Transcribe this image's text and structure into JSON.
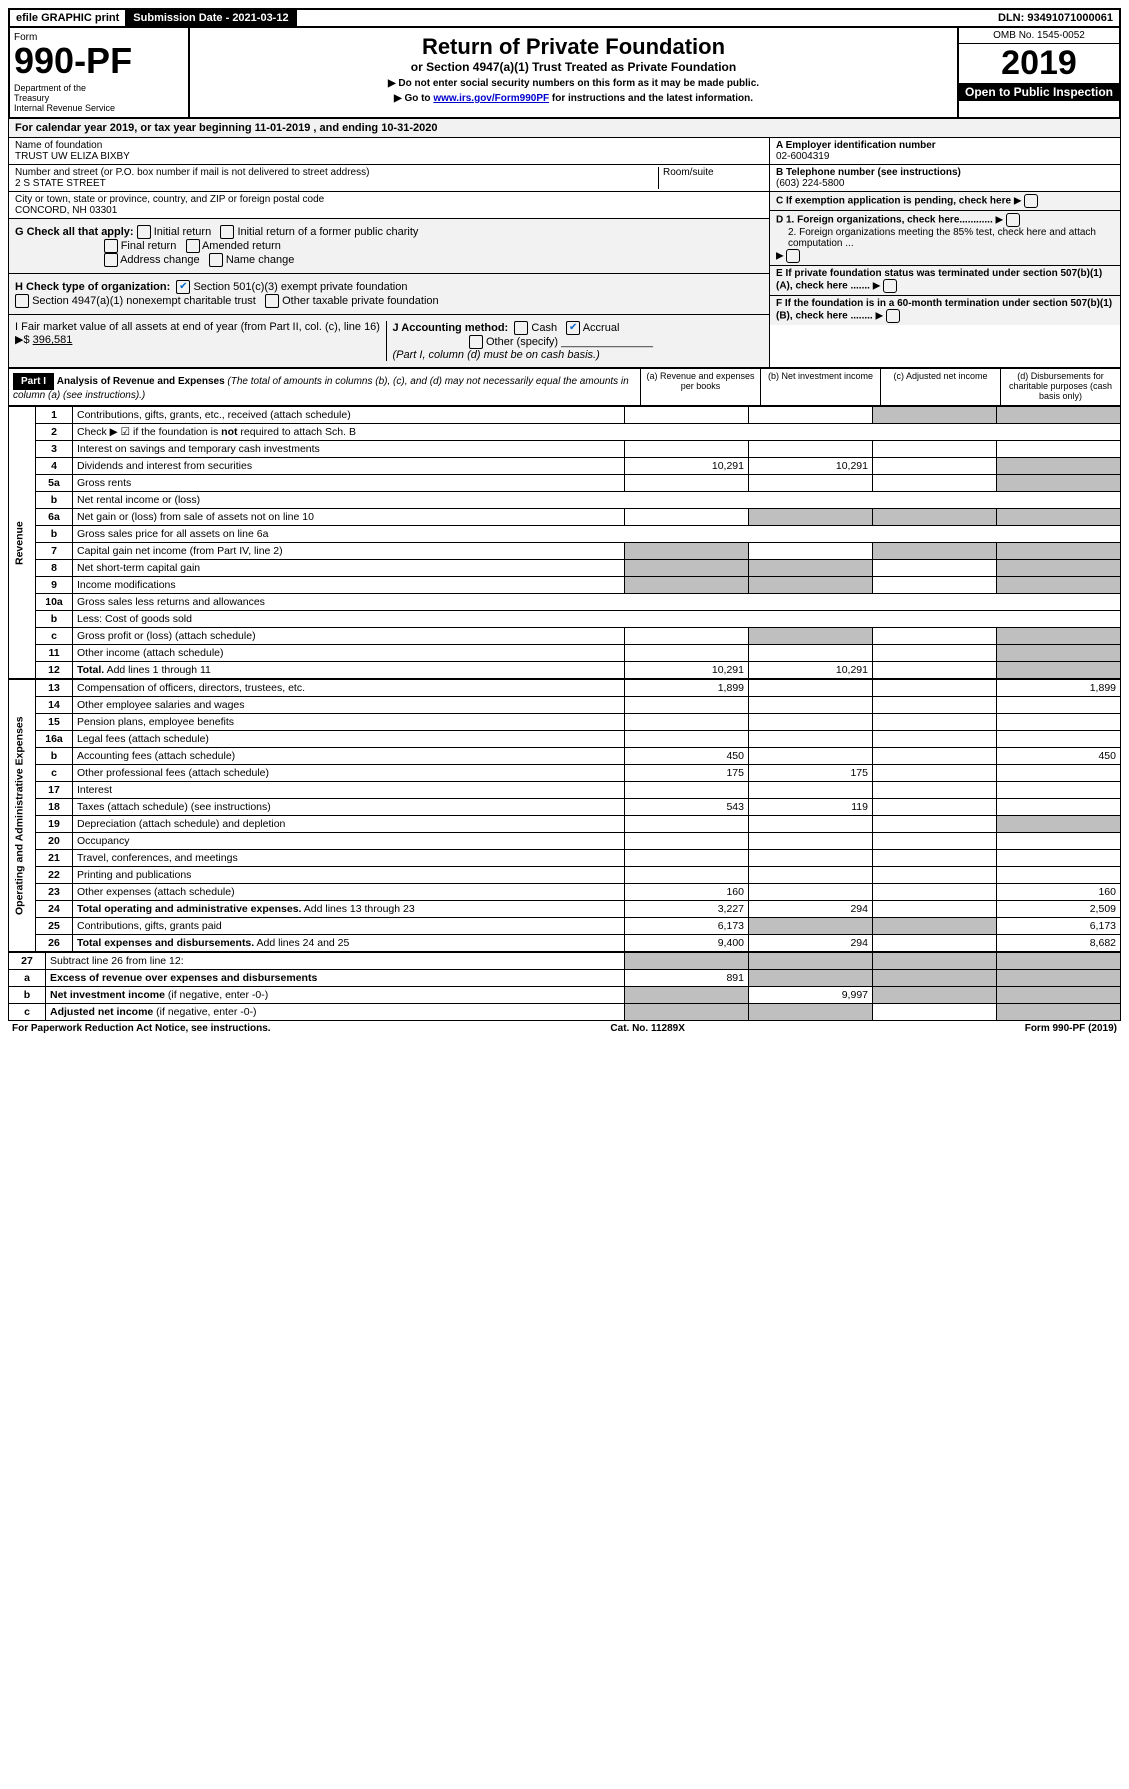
{
  "top": {
    "efile": "efile GRAPHIC print",
    "submission": "Submission Date - 2021-03-12",
    "dln": "DLN: 93491071000061"
  },
  "header": {
    "form_label": "Form",
    "form_number": "990-PF",
    "dept": "Department of the Treasury\nInternal Revenue Service",
    "title": "Return of Private Foundation",
    "subtitle": "or Section 4947(a)(1) Trust Treated as Private Foundation",
    "note1": "▶ Do not enter social security numbers on this form as it may be made public.",
    "note2_pre": "▶ Go to ",
    "note2_link": "www.irs.gov/Form990PF",
    "note2_post": " for instructions and the latest information.",
    "omb": "OMB No. 1545-0052",
    "year": "2019",
    "open_public": "Open to Public Inspection"
  },
  "cal_year": "For calendar year 2019, or tax year beginning 11-01-2019                           , and ending 10-31-2020",
  "info": {
    "name_label": "Name of foundation",
    "name_value": "TRUST UW ELIZA BIXBY",
    "address_label": "Number and street (or P.O. box number if mail is not delivered to street address)",
    "address_value": "2 S STATE STREET",
    "room_label": "Room/suite",
    "city_label": "City or town, state or province, country, and ZIP or foreign postal code",
    "city_value": "CONCORD, NH  03301",
    "ein_label": "A Employer identification number",
    "ein_value": "02-6004319",
    "phone_label": "B Telephone number (see instructions)",
    "phone_value": "(603) 224-5800",
    "c_label": "C If exemption application is pending, check here",
    "g_label": "G Check all that apply:",
    "g_opts": [
      "Initial return",
      "Initial return of a former public charity",
      "Final return",
      "Amended return",
      "Address change",
      "Name change"
    ],
    "d1": "D 1. Foreign organizations, check here............",
    "d2": "2. Foreign organizations meeting the 85% test, check here and attach computation ...",
    "h_label": "H Check type of organization:",
    "h_opt1": "Section 501(c)(3) exempt private foundation",
    "h_opt2": "Section 4947(a)(1) nonexempt charitable trust",
    "h_opt3": "Other taxable private foundation",
    "e_label": "E If private foundation status was terminated under section 507(b)(1)(A), check here .......",
    "i_label": "I Fair market value of all assets at end of year (from Part II, col. (c), line 16) ▶$",
    "i_value": "396,581",
    "j_label": "J Accounting method:",
    "j_cash": "Cash",
    "j_accrual": "Accrual",
    "j_other": "Other (specify)",
    "j_note": "(Part I, column (d) must be on cash basis.)",
    "f_label": "F If the foundation is in a 60-month termination under section 507(b)(1)(B), check here ........"
  },
  "part1": {
    "label": "Part I",
    "title": "Analysis of Revenue and Expenses",
    "note": "(The total of amounts in columns (b), (c), and (d) may not necessarily equal the amounts in column (a) (see instructions).)",
    "col_a": "(a) Revenue and expenses per books",
    "col_b": "(b) Net investment income",
    "col_c": "(c) Adjusted net income",
    "col_d": "(d) Disbursements for charitable purposes (cash basis only)"
  },
  "revenue_label": "Revenue",
  "expenses_label": "Operating and Administrative Expenses",
  "lines": [
    {
      "no": "1",
      "desc": "Contributions, gifts, grants, etc., received (attach schedule)",
      "a": "",
      "b": "",
      "c": "",
      "d": "",
      "d_gray": true,
      "c_gray": true
    },
    {
      "no": "2",
      "desc": "Check ▶ ☑ if the foundation is <b>not</b> required to attach Sch. B",
      "wide": true
    },
    {
      "no": "3",
      "desc": "Interest on savings and temporary cash investments",
      "a": "",
      "b": "",
      "c": "",
      "d": ""
    },
    {
      "no": "4",
      "desc": "Dividends and interest from securities",
      "a": "10,291",
      "b": "10,291",
      "c": "",
      "d": "",
      "d_gray": true
    },
    {
      "no": "5a",
      "desc": "Gross rents",
      "a": "",
      "b": "",
      "c": "",
      "d": "",
      "d_gray": true
    },
    {
      "no": "b",
      "desc": "Net rental income or (loss)",
      "wide": true
    },
    {
      "no": "6a",
      "desc": "Net gain or (loss) from sale of assets not on line 10",
      "a": "",
      "b": "",
      "c": "",
      "d": "",
      "b_gray": true,
      "c_gray": true,
      "d_gray": true
    },
    {
      "no": "b",
      "desc": "Gross sales price for all assets on line 6a",
      "wide": true
    },
    {
      "no": "7",
      "desc": "Capital gain net income (from Part IV, line 2)",
      "a": "",
      "b": "",
      "c": "",
      "d": "",
      "a_gray": true,
      "c_gray": true,
      "d_gray": true
    },
    {
      "no": "8",
      "desc": "Net short-term capital gain",
      "a": "",
      "b": "",
      "c": "",
      "d": "",
      "a_gray": true,
      "b_gray": true,
      "d_gray": true
    },
    {
      "no": "9",
      "desc": "Income modifications",
      "a": "",
      "b": "",
      "c": "",
      "d": "",
      "a_gray": true,
      "b_gray": true,
      "d_gray": true
    },
    {
      "no": "10a",
      "desc": "Gross sales less returns and allowances",
      "wide": true
    },
    {
      "no": "b",
      "desc": "Less: Cost of goods sold",
      "wide": true
    },
    {
      "no": "c",
      "desc": "Gross profit or (loss) (attach schedule)",
      "a": "",
      "b": "",
      "c": "",
      "d": "",
      "b_gray": true,
      "d_gray": true
    },
    {
      "no": "11",
      "desc": "Other income (attach schedule)",
      "a": "",
      "b": "",
      "c": "",
      "d": "",
      "d_gray": true
    },
    {
      "no": "12",
      "desc": "<b>Total.</b> Add lines 1 through 11",
      "a": "10,291",
      "b": "10,291",
      "c": "",
      "d": "",
      "d_gray": true
    }
  ],
  "expense_lines": [
    {
      "no": "13",
      "desc": "Compensation of officers, directors, trustees, etc.",
      "a": "1,899",
      "b": "",
      "c": "",
      "d": "1,899"
    },
    {
      "no": "14",
      "desc": "Other employee salaries and wages",
      "a": "",
      "b": "",
      "c": "",
      "d": ""
    },
    {
      "no": "15",
      "desc": "Pension plans, employee benefits",
      "a": "",
      "b": "",
      "c": "",
      "d": ""
    },
    {
      "no": "16a",
      "desc": "Legal fees (attach schedule)",
      "a": "",
      "b": "",
      "c": "",
      "d": ""
    },
    {
      "no": "b",
      "desc": "Accounting fees (attach schedule)",
      "a": "450",
      "b": "",
      "c": "",
      "d": "450"
    },
    {
      "no": "c",
      "desc": "Other professional fees (attach schedule)",
      "a": "175",
      "b": "175",
      "c": "",
      "d": ""
    },
    {
      "no": "17",
      "desc": "Interest",
      "a": "",
      "b": "",
      "c": "",
      "d": ""
    },
    {
      "no": "18",
      "desc": "Taxes (attach schedule) (see instructions)",
      "a": "543",
      "b": "119",
      "c": "",
      "d": ""
    },
    {
      "no": "19",
      "desc": "Depreciation (attach schedule) and depletion",
      "a": "",
      "b": "",
      "c": "",
      "d": "",
      "d_gray": true
    },
    {
      "no": "20",
      "desc": "Occupancy",
      "a": "",
      "b": "",
      "c": "",
      "d": ""
    },
    {
      "no": "21",
      "desc": "Travel, conferences, and meetings",
      "a": "",
      "b": "",
      "c": "",
      "d": ""
    },
    {
      "no": "22",
      "desc": "Printing and publications",
      "a": "",
      "b": "",
      "c": "",
      "d": ""
    },
    {
      "no": "23",
      "desc": "Other expenses (attach schedule)",
      "a": "160",
      "b": "",
      "c": "",
      "d": "160"
    },
    {
      "no": "24",
      "desc": "<b>Total operating and administrative expenses.</b> Add lines 13 through 23",
      "a": "3,227",
      "b": "294",
      "c": "",
      "d": "2,509"
    },
    {
      "no": "25",
      "desc": "Contributions, gifts, grants paid",
      "a": "6,173",
      "b": "",
      "c": "",
      "d": "6,173",
      "b_gray": true,
      "c_gray": true
    },
    {
      "no": "26",
      "desc": "<b>Total expenses and disbursements.</b> Add lines 24 and 25",
      "a": "9,400",
      "b": "294",
      "c": "",
      "d": "8,682"
    }
  ],
  "bottom_lines": [
    {
      "no": "27",
      "desc": "Subtract line 26 from line 12:",
      "a": "",
      "b": "",
      "c": "",
      "d": "",
      "a_gray": true,
      "b_gray": true,
      "c_gray": true,
      "d_gray": true
    },
    {
      "no": "a",
      "desc": "<b>Excess of revenue over expenses and disbursements</b>",
      "a": "891",
      "b": "",
      "c": "",
      "d": "",
      "b_gray": true,
      "c_gray": true,
      "d_gray": true
    },
    {
      "no": "b",
      "desc": "<b>Net investment income</b> (if negative, enter -0-)",
      "a": "",
      "b": "9,997",
      "c": "",
      "d": "",
      "a_gray": true,
      "c_gray": true,
      "d_gray": true
    },
    {
      "no": "c",
      "desc": "<b>Adjusted net income</b> (if negative, enter -0-)",
      "a": "",
      "b": "",
      "c": "",
      "d": "",
      "a_gray": true,
      "b_gray": true,
      "d_gray": true
    }
  ],
  "footer": {
    "left": "For Paperwork Reduction Act Notice, see instructions.",
    "mid": "Cat. No. 11289X",
    "right": "Form 990-PF (2019)"
  }
}
